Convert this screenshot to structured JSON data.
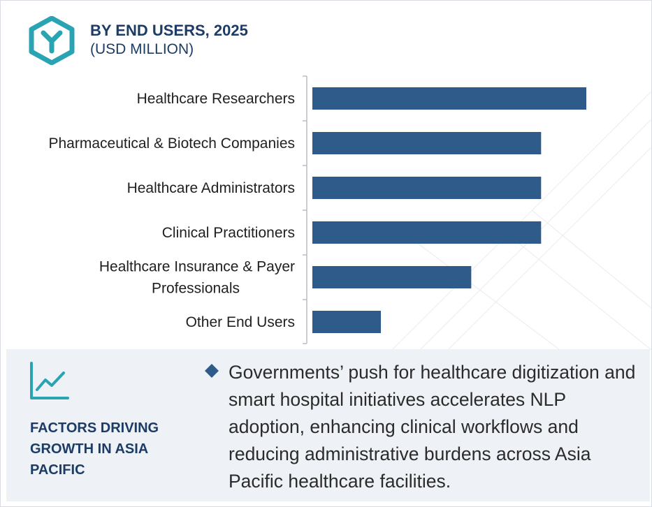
{
  "header": {
    "title": "BY END USERS, 2025",
    "subtitle": "(USD MILLION)"
  },
  "chart_data": {
    "type": "bar",
    "orientation": "horizontal",
    "categories": [
      [
        "Healthcare Researchers"
      ],
      [
        "Pharmaceutical & Biotech Companies"
      ],
      [
        "Healthcare Administrators"
      ],
      [
        "Clinical Practitioners"
      ],
      [
        "Healthcare Insurance & Payer",
        "Professionals"
      ],
      [
        "Other End Users"
      ]
    ],
    "values": [
      100,
      83.5,
      83.5,
      83.5,
      58,
      25
    ],
    "xlim": [
      0,
      100
    ],
    "bar_color": "#2e5b8a",
    "grid": false
  },
  "footer": {
    "factors_title": "FACTORS DRIVING GROWTH IN ASIA PACIFIC",
    "factor_text": "Governments’ push for healthcare digitization and smart hospital initiatives accelerates NLP adoption, enhancing clinical workflows and reducing administrative burdens across Asia Pacific healthcare facilities."
  },
  "colors": {
    "accent_teal": "#2aa3b2",
    "navy": "#1c3c66",
    "bar": "#2e5b8a",
    "footer_bg": "#eef1f5"
  },
  "icons": {
    "logo": "hexagon-y-logo-icon",
    "trend": "line-chart-trend-icon",
    "bullet": "diamond-bullet-icon"
  }
}
